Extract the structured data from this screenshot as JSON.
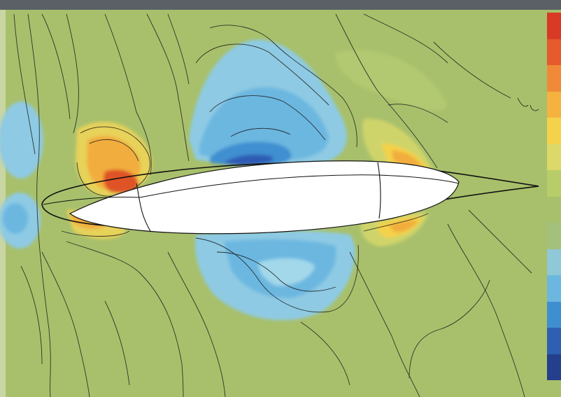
{
  "figure": {
    "kind": "flow-field contour plot around a streamlined body",
    "background_color": "#a8c06b",
    "top_band_color": "#5b6066"
  },
  "colorbar": {
    "position": "right",
    "colors": [
      "#d83a26",
      "#e65a2b",
      "#f08a38",
      "#f5b23f",
      "#f4d24a",
      "#dcd86a",
      "#b8cd6a",
      "#a8c06b",
      "#a3c07d",
      "#8fc8d6",
      "#6cb7e0",
      "#3f8fd0",
      "#2e5fb0",
      "#243f8c"
    ]
  },
  "field": {
    "colors": {
      "strong_negative": "#2d5cb5",
      "negative": "#4d97d8",
      "weak_negative": "#8ecae3",
      "neutral": "#a8c06b",
      "weak_positive": "#e7d25a",
      "positive": "#f1ad3c",
      "strong_positive": "#df5226"
    }
  }
}
